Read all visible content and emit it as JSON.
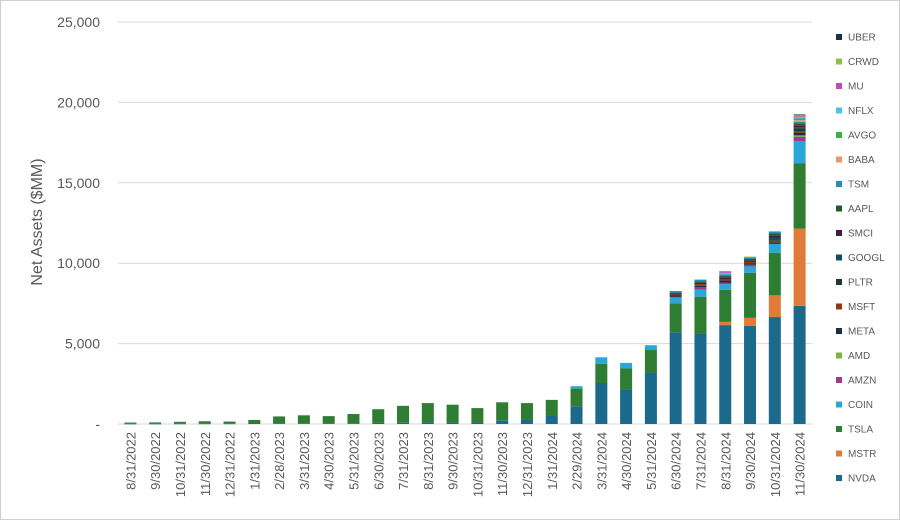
{
  "chart_data": {
    "type": "bar",
    "stacked": true,
    "ylabel": "Net Assets ($MM)",
    "ylim": [
      0,
      25000
    ],
    "yticks": [
      0,
      5000,
      10000,
      15000,
      20000,
      25000
    ],
    "ytick_labels": [
      "-",
      "5,000",
      "10,000",
      "15,000",
      "20,000",
      "25,000"
    ],
    "grid": "horizontal",
    "legend_position": "right",
    "categories": [
      "8/31/2022",
      "9/30/2022",
      "10/31/2022",
      "11/30/2022",
      "12/31/2022",
      "1/31/2023",
      "2/28/2023",
      "3/31/2023",
      "4/30/2023",
      "5/31/2023",
      "6/30/2023",
      "7/31/2023",
      "8/31/2023",
      "9/30/2023",
      "10/31/2023",
      "11/30/2023",
      "12/31/2023",
      "1/31/2024",
      "2/29/2024",
      "3/31/2024",
      "4/30/2024",
      "5/31/2024",
      "6/30/2024",
      "7/31/2024",
      "8/31/2024",
      "9/30/2024",
      "10/31/2024",
      "11/30/2024"
    ],
    "series": [
      {
        "name": "NVDA",
        "color": "#1b6a8c",
        "values": [
          10,
          10,
          15,
          20,
          20,
          30,
          50,
          40,
          40,
          40,
          70,
          80,
          100,
          100,
          90,
          200,
          250,
          500,
          1100,
          2550,
          2150,
          3200,
          5700,
          5600,
          6150,
          6100,
          6650,
          7350
        ]
      },
      {
        "name": "MSTR",
        "color": "#e07b39",
        "values": [
          0,
          0,
          0,
          0,
          0,
          0,
          0,
          0,
          0,
          0,
          0,
          0,
          0,
          0,
          0,
          0,
          0,
          0,
          0,
          0,
          0,
          0,
          0,
          0,
          200,
          500,
          1350,
          4800
        ]
      },
      {
        "name": "TSLA",
        "color": "#2e7d32",
        "values": [
          80,
          90,
          120,
          150,
          130,
          220,
          420,
          500,
          450,
          580,
          850,
          1050,
          1200,
          1100,
          900,
          1150,
          1050,
          1000,
          1100,
          1200,
          1300,
          1400,
          1800,
          2300,
          2000,
          2800,
          2650,
          4050
        ]
      },
      {
        "name": "COIN",
        "color": "#29a7d9",
        "values": [
          0,
          0,
          0,
          0,
          0,
          0,
          0,
          0,
          0,
          0,
          0,
          0,
          0,
          0,
          0,
          0,
          0,
          0,
          150,
          400,
          350,
          300,
          380,
          450,
          350,
          400,
          550,
          1400
        ]
      },
      {
        "name": "AMZN",
        "color": "#a0398e",
        "values": [
          0,
          0,
          0,
          0,
          0,
          0,
          0,
          0,
          0,
          0,
          0,
          0,
          0,
          0,
          0,
          0,
          0,
          0,
          0,
          0,
          0,
          0,
          0,
          150,
          100,
          100,
          0,
          250
        ]
      },
      {
        "name": "AMD",
        "color": "#7cb342",
        "values": [
          0,
          0,
          0,
          0,
          0,
          0,
          0,
          0,
          0,
          0,
          0,
          0,
          0,
          0,
          0,
          0,
          0,
          0,
          0,
          0,
          0,
          0,
          0,
          0,
          0,
          0,
          0,
          100
        ]
      },
      {
        "name": "META",
        "color": "#1f2d3d",
        "values": [
          0,
          0,
          0,
          0,
          0,
          0,
          0,
          0,
          0,
          0,
          0,
          0,
          0,
          0,
          0,
          0,
          0,
          0,
          0,
          0,
          0,
          0,
          50,
          100,
          120,
          80,
          100,
          150
        ]
      },
      {
        "name": "MSFT",
        "color": "#8a3b12",
        "values": [
          0,
          0,
          0,
          0,
          0,
          0,
          0,
          0,
          0,
          0,
          0,
          0,
          0,
          0,
          0,
          0,
          0,
          0,
          0,
          0,
          0,
          0,
          60,
          100,
          100,
          100,
          100,
          100
        ]
      },
      {
        "name": "PLTR",
        "color": "#1a3d2a",
        "values": [
          0,
          0,
          0,
          0,
          0,
          0,
          0,
          0,
          0,
          0,
          0,
          0,
          0,
          0,
          0,
          0,
          0,
          0,
          0,
          0,
          0,
          0,
          0,
          0,
          0,
          0,
          100,
          150
        ]
      },
      {
        "name": "GOOGL",
        "color": "#124e63",
        "values": [
          0,
          0,
          0,
          0,
          0,
          0,
          0,
          0,
          0,
          0,
          0,
          0,
          0,
          0,
          0,
          0,
          0,
          0,
          0,
          0,
          0,
          0,
          0,
          0,
          0,
          0,
          100,
          100
        ]
      },
      {
        "name": "SMCI",
        "color": "#4a1742",
        "values": [
          0,
          0,
          0,
          0,
          0,
          0,
          0,
          0,
          0,
          0,
          0,
          0,
          0,
          0,
          0,
          0,
          0,
          0,
          0,
          0,
          0,
          0,
          80,
          80,
          80,
          80,
          100,
          100
        ]
      },
      {
        "name": "AAPL",
        "color": "#25582a",
        "values": [
          0,
          0,
          0,
          0,
          0,
          0,
          0,
          0,
          0,
          0,
          0,
          0,
          0,
          0,
          0,
          0,
          0,
          0,
          0,
          0,
          0,
          0,
          100,
          100,
          100,
          100,
          150,
          150
        ]
      },
      {
        "name": "TSM",
        "color": "#2690b0",
        "values": [
          0,
          0,
          0,
          0,
          0,
          0,
          0,
          0,
          0,
          0,
          0,
          0,
          0,
          0,
          0,
          0,
          0,
          0,
          0,
          0,
          0,
          0,
          100,
          100,
          100,
          100,
          100,
          100
        ]
      },
      {
        "name": "BABA",
        "color": "#e8996b",
        "values": [
          0,
          0,
          0,
          0,
          0,
          0,
          0,
          0,
          0,
          0,
          0,
          0,
          0,
          0,
          0,
          0,
          0,
          0,
          0,
          0,
          0,
          0,
          0,
          0,
          0,
          0,
          0,
          100
        ]
      },
      {
        "name": "AVGO",
        "color": "#3cae4c",
        "values": [
          0,
          0,
          0,
          0,
          0,
          0,
          0,
          0,
          0,
          0,
          0,
          0,
          0,
          0,
          0,
          0,
          0,
          0,
          0,
          0,
          0,
          0,
          0,
          0,
          0,
          0,
          0,
          100
        ]
      },
      {
        "name": "NFLX",
        "color": "#4cc3e8",
        "values": [
          0,
          0,
          0,
          0,
          0,
          0,
          0,
          0,
          0,
          0,
          0,
          0,
          0,
          0,
          0,
          0,
          0,
          0,
          0,
          0,
          0,
          0,
          0,
          0,
          100,
          0,
          50,
          100
        ]
      },
      {
        "name": "MU",
        "color": "#c24bb0",
        "values": [
          0,
          0,
          0,
          0,
          0,
          0,
          0,
          0,
          0,
          0,
          0,
          0,
          0,
          0,
          0,
          0,
          0,
          0,
          0,
          0,
          0,
          0,
          0,
          0,
          100,
          0,
          0,
          50
        ]
      },
      {
        "name": "CRWD",
        "color": "#8bc34a",
        "values": [
          0,
          0,
          0,
          0,
          0,
          0,
          0,
          0,
          0,
          0,
          0,
          0,
          0,
          0,
          0,
          0,
          0,
          0,
          0,
          0,
          0,
          0,
          0,
          0,
          0,
          50,
          0,
          50
        ]
      },
      {
        "name": "UBER",
        "color": "#163347",
        "values": [
          0,
          0,
          0,
          0,
          0,
          0,
          0,
          0,
          0,
          0,
          0,
          0,
          0,
          0,
          0,
          0,
          0,
          0,
          0,
          0,
          0,
          0,
          0,
          0,
          0,
          0,
          0,
          50
        ]
      }
    ]
  }
}
